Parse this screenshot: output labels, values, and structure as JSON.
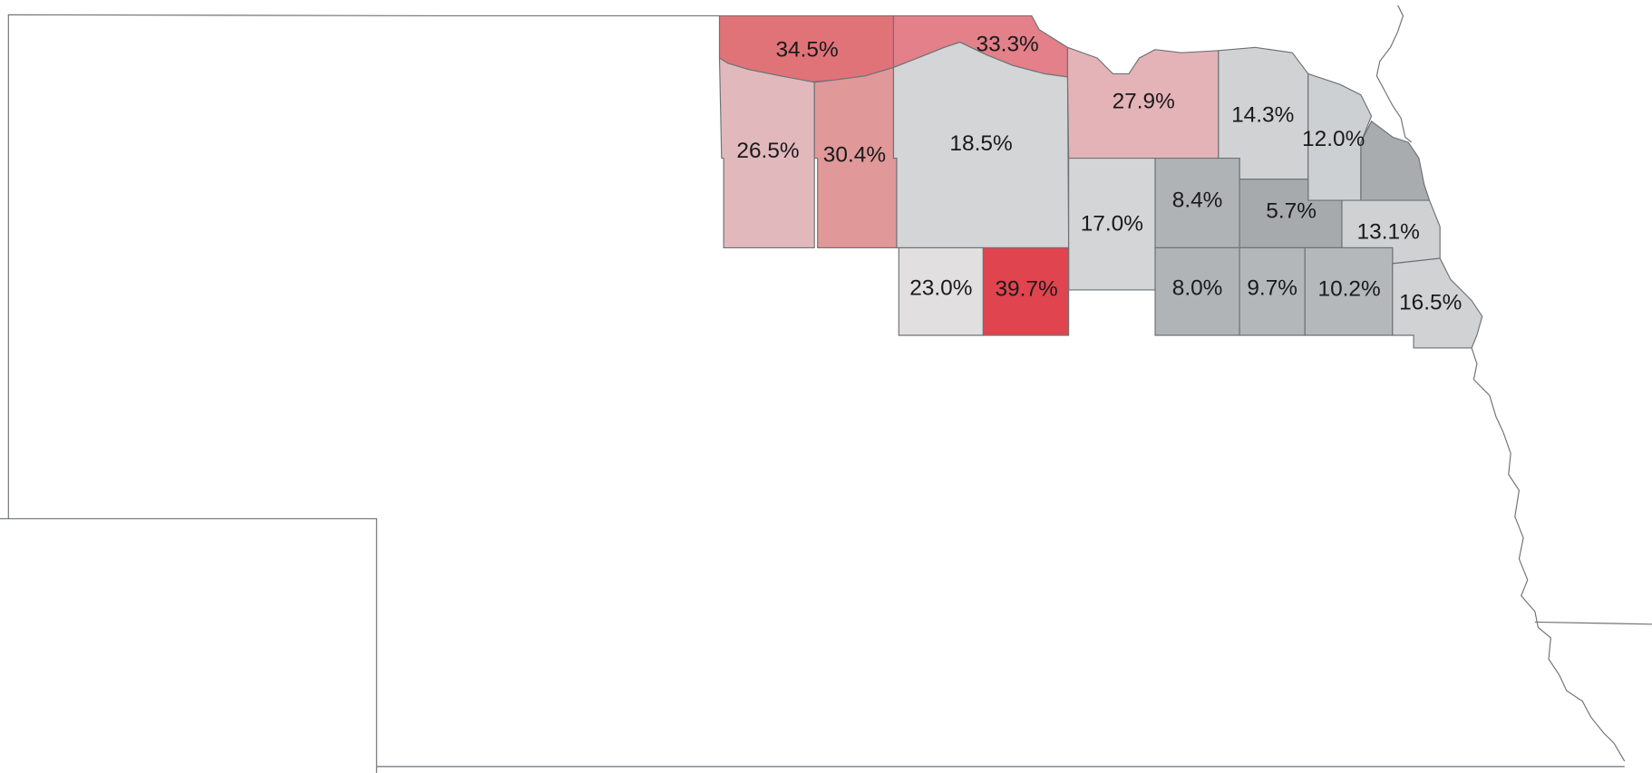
{
  "regions": [
    {
      "label": "34.5%",
      "color": "#e07378"
    },
    {
      "label": "33.3%",
      "color": "#e3808a"
    },
    {
      "label": "26.5%",
      "color": "#e1b9bd"
    },
    {
      "label": "30.4%",
      "color": "#e09899"
    },
    {
      "label": "18.5%",
      "color": "#d3d5d7"
    },
    {
      "label": "27.9%",
      "color": "#e4b3b7"
    },
    {
      "label": "14.3%",
      "color": "#d0d2d4"
    },
    {
      "label": "12.0%",
      "color": "#cdd0d2"
    },
    {
      "color": "#a9acaf"
    },
    {
      "label": "17.0%",
      "color": "#d3d5d7"
    },
    {
      "label": "8.4%",
      "color": "#b0b3b6"
    },
    {
      "label": "5.7%",
      "color": "#a7aaad"
    },
    {
      "label": "13.1%",
      "color": "#cfd1d3"
    },
    {
      "label": "23.0%",
      "color": "#e2dfe0"
    },
    {
      "label": "39.7%",
      "color": "#e0444e"
    },
    {
      "label": "8.0%",
      "color": "#b1b4b7"
    },
    {
      "label": "9.7%",
      "color": "#b4b7ba"
    },
    {
      "label": "10.2%",
      "color": "#b5b8bb"
    },
    {
      "label": "16.5%",
      "color": "#d0d2d4"
    }
  ]
}
